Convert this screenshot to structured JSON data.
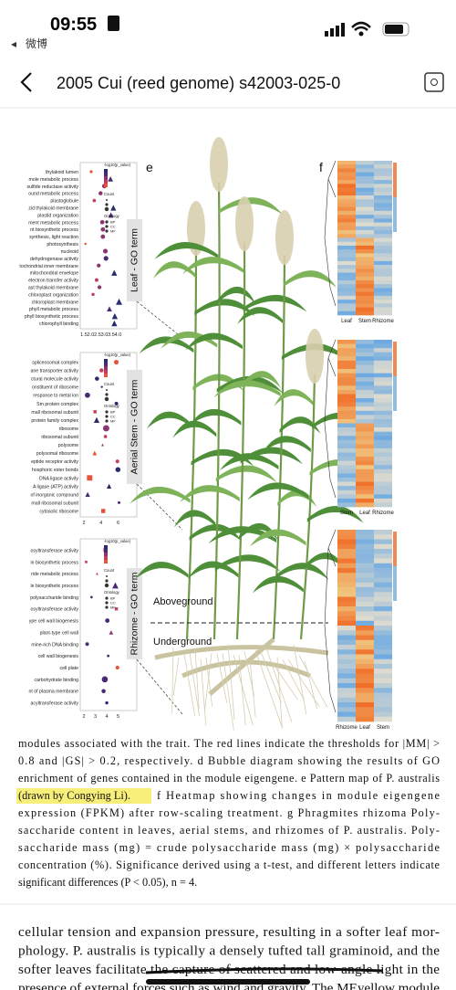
{
  "status_bar": {
    "time": "09:55",
    "back_app": "微博"
  },
  "nav": {
    "title": "2005 Cui (reed genome) s42003-025-0"
  },
  "figure": {
    "panel_labels": [
      "e",
      "f"
    ],
    "go_panels": [
      {
        "title": "Leaf - GO term",
        "terms": [
          "thylakoid lumen",
          "mole metabolic process",
          "sulfide reductase activity",
          "ound metabolic process",
          "plastoglobule",
          "zid thylakoid membrane",
          "plastid organization",
          "ment metabolic process",
          "nt biosynthetic process",
          "synthesis, light reaction",
          "photosynthesis",
          "nucleoid",
          "dehydrogenase activity",
          "tochondrial inner membrane",
          "mitochondrial envelope",
          "electron transfer activity",
          "ast thylakoid membrane",
          "chloroplast organization",
          "chloroplast membrane",
          "phyll metabolic process",
          "phyll biosynthetic process",
          "chlorophyll binding"
        ],
        "xticks": [
          "1.5",
          "2.0",
          "2.5",
          "3.0",
          "3.5",
          "4.0"
        ]
      },
      {
        "title": "Aerial Stem - GO term",
        "terms": [
          "spliceosomal complex",
          "ane transporter activity",
          "ctural molecule activity",
          "onstituent of ribosome",
          "response to metal ion",
          "Sm protein complex",
          "mall ribosomal subunit",
          "protein family complex",
          "ribosome",
          "ribosomal subunit",
          "polysome",
          "polysomal ribosome",
          "eptide receptor activity",
          "hosphoric ester bonds",
          "DNA ligase activity",
          "A ligase (ATP) activity",
          "of inorganic compound",
          "mall ribosomal subunit",
          "cytosolic ribosome"
        ],
        "xticks": [
          "2",
          "4",
          "6"
        ]
      },
      {
        "title": "Rhizome - GO term",
        "terms": [
          "osyltransferase activity",
          "in biosynthetic process",
          "ride metabolic process",
          "le biosynthetic process",
          "polysaccharide binding",
          "osyltransferase activity",
          "ype cell wall biogenesis",
          "plant-type cell wall",
          "mine-rich DNA binding",
          "cell wall biogenesis",
          "cell plate",
          "carbohydrate binding",
          "nt of plasma membrane",
          "acyltransferase activity"
        ],
        "xticks": [
          "2",
          "3",
          "4",
          "5"
        ]
      }
    ],
    "legend": {
      "color_title": "-log10(p_value)",
      "count_title": "Count",
      "ontology_title": "Ontology",
      "ontology": [
        "BP",
        "CC",
        "MF"
      ]
    },
    "heatmap_labels": [
      [
        "Leaf",
        "Stem",
        "Rhizome"
      ],
      [
        "Stem",
        "Leaf",
        "Rhizome"
      ],
      [
        "Rhizome",
        "Leaf",
        "Stem"
      ]
    ],
    "region_labels": [
      "Aboveground",
      "Underground"
    ]
  },
  "caption": {
    "lines": [
      "modules associated with the trait. The red lines indicate the thresholds for |MM| >",
      "0.8 and |GS| > 0.2, respectively. d Bubble diagram showing the results of GO",
      "enrichment of genes contained in the module eigengene. e Pattern map of P. australis",
      "expression (FPKM) after row-scaling treatment. g Phragmites rhizoma Poly-",
      "saccharide content in leaves, aerial stems, and rhizomes of P. australis. Poly-",
      "saccharide mass (mg) = crude polysaccharide mass (mg) × polysaccharide",
      "concentration (%). Significance derived using a t-test, and different letters indicate",
      "significant differences (P < 0.05), n = 4."
    ],
    "highlight": "(drawn by Congying Li).",
    "highlight_rest": "f Heatmap showing changes in module eigengene"
  },
  "body": {
    "lines": [
      "cellular tension and expansion pressure, resulting in a softer leaf mor-",
      "phology. P. australis is typically a densely tufted tall graminoid, and the",
      "softer leaves facilitate the capture of scattered and low-angle light in the",
      "presence of external forces such as wind and gravity. The MEyellow module"
    ]
  }
}
